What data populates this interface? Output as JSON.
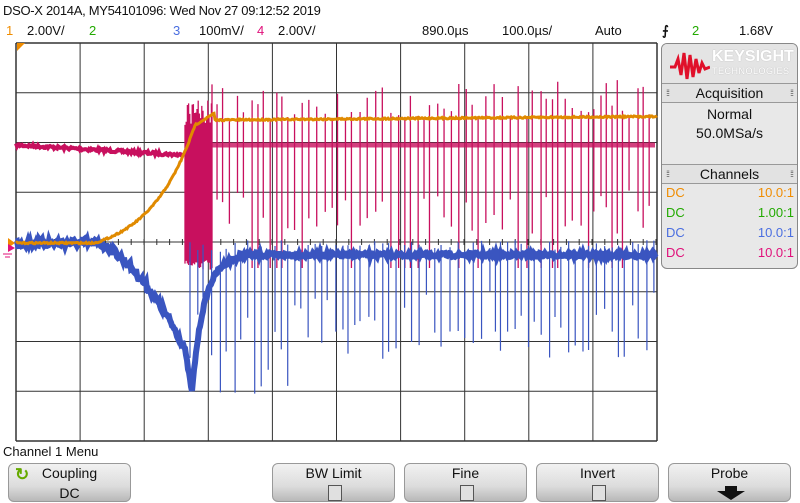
{
  "title": "DSO-X 2014A, MY54101096: Wed Nov 27 09:12:52 2019",
  "channels_header": [
    {
      "num": "1",
      "scale": "2.00V/",
      "color": "#f08c00"
    },
    {
      "num": "2",
      "scale": "",
      "color": "#22aa00"
    },
    {
      "num": "3",
      "scale": "100mV/",
      "color": "#4a6ee0"
    },
    {
      "num": "4",
      "scale": "2.00V/",
      "color": "#e0107a"
    }
  ],
  "timebase": {
    "delay": "890.0µs",
    "scale": "100.0µs/",
    "mode": "Auto"
  },
  "trigger": {
    "icon": "rising-edge-icon",
    "source": "2",
    "level": "1.68V"
  },
  "brand": {
    "name": "KEYSIGHT",
    "sub": "TECHNOLOGIES"
  },
  "acquisition": {
    "heading": "Acquisition",
    "mode": "Normal",
    "rate": "50.0MSa/s"
  },
  "channels_panel": {
    "heading": "Channels",
    "rows": [
      {
        "coupling": "DC",
        "probe": "10.0:1",
        "color": "#f08c00"
      },
      {
        "coupling": "DC",
        "probe": "1.00:1",
        "color": "#22aa00"
      },
      {
        "coupling": "DC",
        "probe": "10.0:1",
        "color": "#4a6ee0"
      },
      {
        "coupling": "DC",
        "probe": "10.0:1",
        "color": "#e0107a"
      }
    ]
  },
  "menu": {
    "title": "Channel 1 Menu",
    "coupling": {
      "label": "Coupling",
      "value": "DC"
    },
    "bw_limit": "BW Limit",
    "fine": "Fine",
    "invert": "Invert",
    "probe": "Probe"
  },
  "trace_colors": {
    "ch1": "#e08a00",
    "ch3": "#3a55c0",
    "ch4": "#c8105e"
  }
}
